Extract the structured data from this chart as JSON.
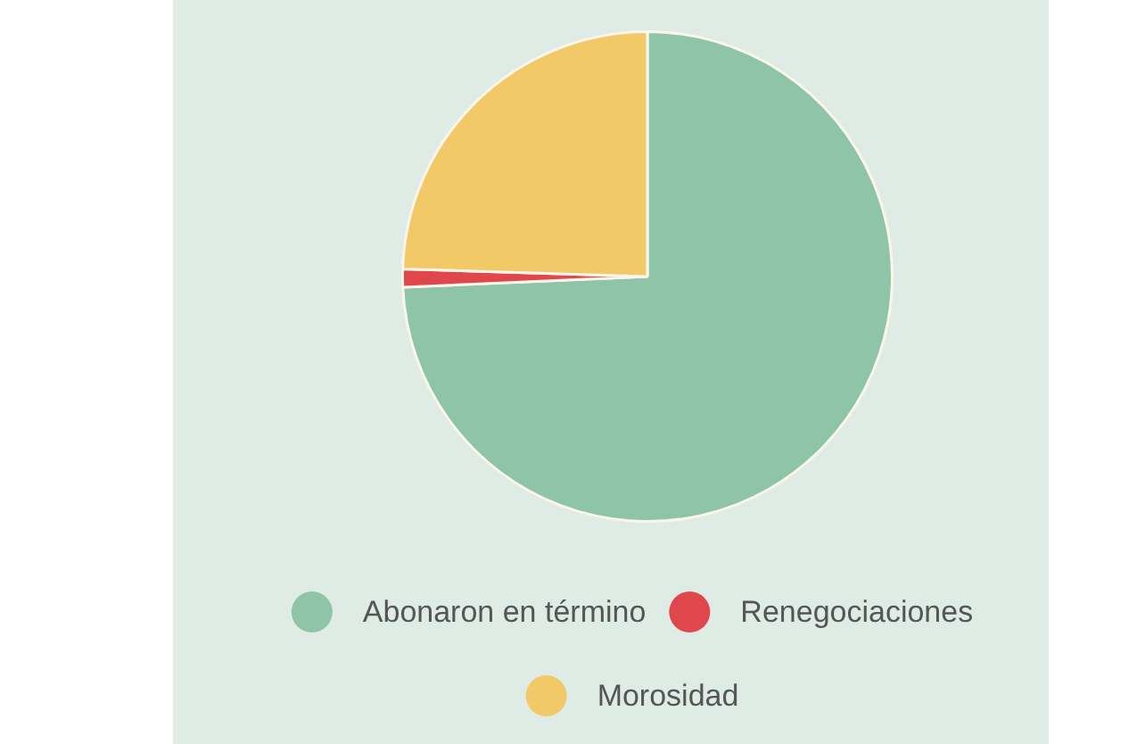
{
  "chart_data": {
    "type": "pie",
    "categories": [
      "Abonaron en término",
      "Renegociaciones",
      "Morosidad"
    ],
    "values": [
      74.3,
      1.2,
      24.5
    ],
    "colors": [
      "#8ec5a9",
      "#e0474c",
      "#f1c967"
    ],
    "legend": "bottom"
  }
}
